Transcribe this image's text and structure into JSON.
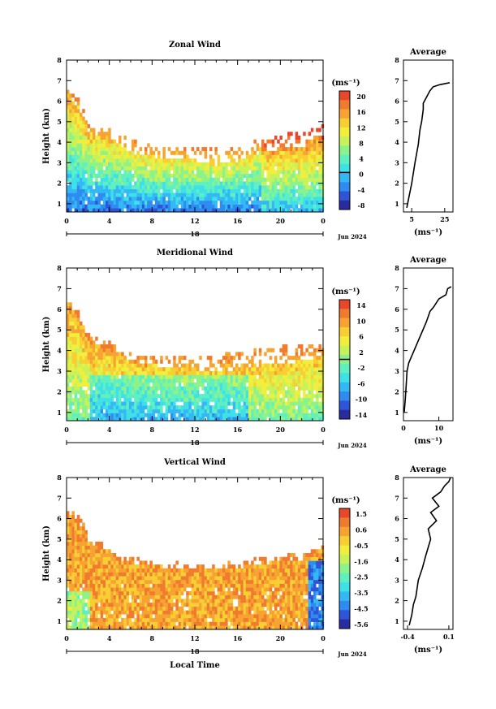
{
  "figure": {
    "xlabel": "Local Time",
    "date_label": "Jun 2024",
    "day_label": "18",
    "ylabel": "Height (km)",
    "avg_title": "Average",
    "unit_label": "(ms⁻¹)"
  },
  "chart_data": [
    {
      "type": "heatmap",
      "title": "Zonal Wind",
      "xlabel": "Local Time",
      "ylabel": "Height (km)",
      "x_ticks": [
        "0",
        "4",
        "8",
        "12",
        "16",
        "20",
        "0"
      ],
      "x_range": [
        0,
        24
      ],
      "y_ticks": [
        "1",
        "2",
        "3",
        "4",
        "5",
        "6",
        "7",
        "8"
      ],
      "y_range": [
        0.6,
        8.0
      ],
      "colorbar": {
        "unit": "(ms⁻¹)",
        "ticks": [
          "20",
          "16",
          "12",
          "8",
          "4",
          "0",
          "-4",
          "-8"
        ],
        "range": [
          -10,
          22
        ],
        "contour_at": 0
      },
      "field": {
        "lower": [
          [
            0,
            6.4
          ],
          [
            1,
            5.8
          ],
          [
            2,
            4.6
          ],
          [
            4,
            4.3
          ],
          [
            6,
            3.6
          ],
          [
            8,
            3.4
          ],
          [
            10,
            3.3
          ],
          [
            12,
            3.2
          ],
          [
            14,
            3.0
          ],
          [
            16,
            3.2
          ],
          [
            18,
            3.6
          ],
          [
            20,
            3.8
          ],
          [
            22,
            3.9
          ],
          [
            23.5,
            4.5
          ]
        ],
        "top": [
          [
            0,
            6.6
          ],
          [
            1,
            6.2
          ],
          [
            2,
            5.0
          ],
          [
            4,
            4.8
          ],
          [
            6,
            4.2
          ],
          [
            8,
            3.9
          ],
          [
            10,
            3.9
          ],
          [
            12,
            3.8
          ],
          [
            14,
            3.8
          ],
          [
            16,
            3.8
          ],
          [
            18,
            4.3
          ],
          [
            20,
            4.5
          ],
          [
            22,
            4.6
          ],
          [
            23.5,
            4.9
          ]
        ]
      },
      "average": {
        "title": "Average",
        "xlabel": "(ms⁻¹)",
        "x_ticks": [
          "5",
          "25"
        ],
        "x_range": [
          0,
          30
        ],
        "y_range": [
          0.6,
          8.0
        ],
        "x": [
          2,
          3,
          5,
          7,
          9,
          10,
          11,
          12,
          12,
          14,
          16,
          18,
          22,
          28
        ],
        "height": [
          0.8,
          1.2,
          2.0,
          3.0,
          3.9,
          4.6,
          5.0,
          5.6,
          5.9,
          6.2,
          6.5,
          6.7,
          6.8,
          6.9
        ]
      }
    },
    {
      "type": "heatmap",
      "title": "Meridional Wind",
      "xlabel": "Local Time",
      "ylabel": "Height (km)",
      "x_ticks": [
        "0",
        "4",
        "8",
        "12",
        "16",
        "20",
        "0"
      ],
      "x_range": [
        0,
        24
      ],
      "y_ticks": [
        "1",
        "2",
        "3",
        "4",
        "5",
        "6",
        "7",
        "8"
      ],
      "y_range": [
        0.6,
        8.0
      ],
      "colorbar": {
        "unit": "(ms⁻¹)",
        "ticks": [
          "14",
          "10",
          "6",
          "2",
          "-2",
          "-6",
          "-10",
          "-14"
        ],
        "range": [
          -16,
          16
        ],
        "contour_at": 0
      },
      "field": {
        "lower": [
          [
            0,
            6.4
          ],
          [
            1,
            5.8
          ],
          [
            2,
            4.6
          ],
          [
            4,
            4.2
          ],
          [
            6,
            3.6
          ],
          [
            8,
            3.4
          ],
          [
            10,
            3.3
          ],
          [
            12,
            3.2
          ],
          [
            14,
            3.1
          ],
          [
            16,
            3.2
          ],
          [
            18,
            3.4
          ],
          [
            20,
            3.5
          ],
          [
            22,
            3.6
          ],
          [
            23.5,
            3.8
          ]
        ],
        "top": [
          [
            0,
            6.5
          ],
          [
            1,
            6.0
          ],
          [
            2,
            4.8
          ],
          [
            4,
            4.5
          ],
          [
            6,
            4.0
          ],
          [
            8,
            3.8
          ],
          [
            10,
            3.8
          ],
          [
            12,
            3.9
          ],
          [
            14,
            3.9
          ],
          [
            16,
            4.0
          ],
          [
            18,
            4.2
          ],
          [
            20,
            4.3
          ],
          [
            22,
            4.3
          ],
          [
            23.5,
            4.4
          ]
        ]
      },
      "average": {
        "title": "Average",
        "xlabel": "(ms⁻¹)",
        "x_ticks": [
          "0",
          "10"
        ],
        "x_range": [
          0,
          14
        ],
        "y_range": [
          0.6,
          8.0
        ],
        "x": [
          0.2,
          0.5,
          0.8,
          1.0,
          1.5,
          3.0,
          5.0,
          6.5,
          7.5,
          8.5,
          10.0,
          12.0,
          12.5,
          13.5
        ],
        "height": [
          1.0,
          1.6,
          2.4,
          3.0,
          3.4,
          4.0,
          4.8,
          5.4,
          5.9,
          6.1,
          6.5,
          6.7,
          7.0,
          7.1
        ]
      }
    },
    {
      "type": "heatmap",
      "title": "Vertical Wind",
      "xlabel": "Local Time",
      "ylabel": "Height (km)",
      "x_ticks": [
        "0",
        "4",
        "8",
        "12",
        "16",
        "20",
        "0"
      ],
      "x_range": [
        0,
        24
      ],
      "y_ticks": [
        "1",
        "2",
        "3",
        "4",
        "5",
        "6",
        "7",
        "8"
      ],
      "y_range": [
        0.6,
        8.0
      ],
      "colorbar": {
        "unit": "(ms⁻¹)",
        "ticks": [
          "1.5",
          "0.6",
          "-0.5",
          "-1.6",
          "-2.5",
          "-3.5",
          "-4.5",
          "-5.6"
        ],
        "range": [
          -6,
          2
        ],
        "contour_at": null
      },
      "field": {
        "lower": [
          [
            0,
            6.4
          ],
          [
            1,
            6.0
          ],
          [
            2,
            5.0
          ],
          [
            4,
            4.4
          ],
          [
            6,
            3.9
          ],
          [
            8,
            3.8
          ],
          [
            10,
            3.7
          ],
          [
            12,
            3.7
          ],
          [
            14,
            3.7
          ],
          [
            16,
            3.7
          ],
          [
            18,
            3.9
          ],
          [
            20,
            4.0
          ],
          [
            22,
            4.0
          ],
          [
            23.5,
            4.6
          ]
        ],
        "top": [
          [
            0,
            6.6
          ],
          [
            1,
            6.3
          ],
          [
            2,
            5.3
          ],
          [
            4,
            4.7
          ],
          [
            6,
            4.2
          ],
          [
            8,
            4.0
          ],
          [
            10,
            4.0
          ],
          [
            12,
            3.9
          ],
          [
            14,
            3.9
          ],
          [
            16,
            4.0
          ],
          [
            18,
            4.2
          ],
          [
            20,
            4.3
          ],
          [
            22,
            4.4
          ],
          [
            23.5,
            4.8
          ]
        ]
      },
      "average": {
        "title": "Average",
        "xlabel": "(ms⁻¹)",
        "x_ticks": [
          "-0.4",
          "0.1"
        ],
        "x_range": [
          -0.45,
          0.15
        ],
        "y_range": [
          0.6,
          8.0
        ],
        "x": [
          -0.38,
          -0.35,
          -0.33,
          -0.3,
          -0.27,
          -0.22,
          -0.18,
          -0.12,
          -0.15,
          -0.05,
          -0.12,
          -0.02,
          -0.1,
          0.0,
          0.05,
          0.1,
          0.12
        ],
        "height": [
          0.8,
          1.3,
          1.8,
          2.2,
          3.0,
          3.6,
          4.2,
          5.0,
          5.5,
          5.9,
          6.3,
          6.6,
          7.0,
          7.3,
          7.6,
          7.8,
          8.0
        ]
      }
    }
  ]
}
